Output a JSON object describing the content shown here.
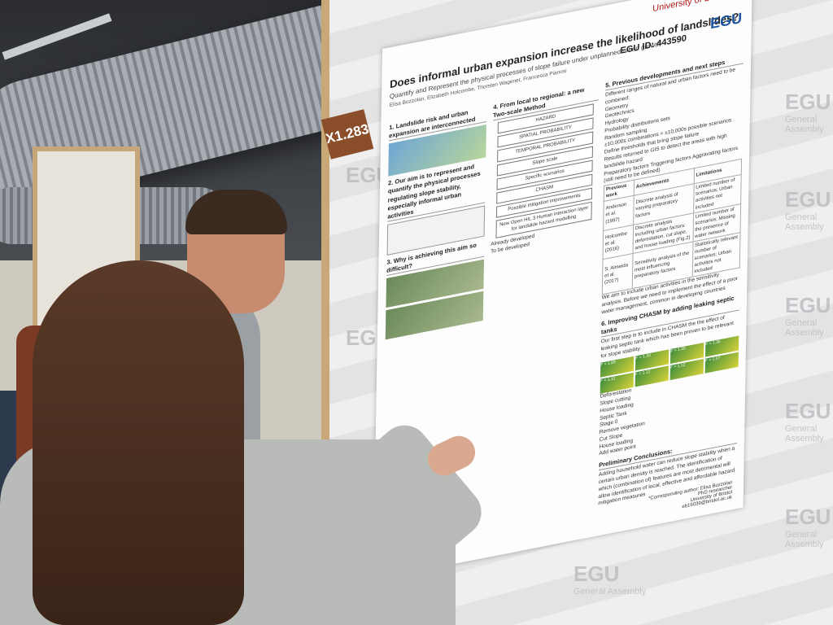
{
  "booth_number": "X1.283",
  "poster": {
    "title": "Does informal urban expansion increase the likelihood of landslides?",
    "subtitle": "Quantify and Represent the physical processes of slope failure under unplanned urban growth",
    "authors": "Elisa Bozzolan, Elizabeth Holcombe, Thorsten Wagener, Francesca Pianosi",
    "egu_id": "EGU ID: 443590",
    "logos": {
      "university": "University of BRISTOL",
      "union": "EGU"
    },
    "sections": {
      "s1": "1. Landslide risk and urban expansion are interconnected",
      "s2": "2. Our aim is to represent and quantify the physical processes regulating slope stability, especially informal urban activities",
      "s3": "3. Why is achieving this aim so difficult?",
      "s4": "4. From local to regional: a new Two-scale Method",
      "s5": "5. Previous developments and next steps",
      "s6": "6. Improving CHASM by adding leaking septic tanks"
    },
    "flow": {
      "hazard": "HAZARD",
      "spatial": "SPATIAL PROBABILITY",
      "temporal": "TEMPORAL PROBABILITY",
      "slope_scale": "Slope scale",
      "scenarios": "Specific scenarios",
      "chasm": "CHASM",
      "mitigation": "Possible mitigation improvements",
      "new_open": "New Open HIL 3 Human interaction layer for landslide hazard modelling",
      "developed": "Already developed",
      "to_develop": "To be developed"
    },
    "s5_items": {
      "intro": "Different ranges of natural and urban factors need to be combined:",
      "geometry": "Geometry",
      "geotechnics": "Geotechnics",
      "hydrology": "Hydrology",
      "prob": "Probability distributions sets",
      "random": "Random sampling",
      "combinations": "±10,000s combinations = ±10,000s possible scenarios",
      "thresholds": "Define thresholds that bring slope failure",
      "results": "Results returned to GIS to detect the areas with high landslide hazard",
      "prep": "Preparatory factors Triggering factors Aggravating factors (still need to be defined)"
    },
    "table": {
      "headers": [
        "Previous work",
        "Achievements",
        "Limitations"
      ],
      "rows": [
        [
          "Anderson et al. (1997)",
          "Discrete analysis of varying preparatory factors",
          "Limited number of scenarios; Urban activities not included"
        ],
        [
          "Holcombe et al. (2016)",
          "Discrete analysis including urban factors: deforestation, cut slope, and house loading (Fig.2)",
          "Limited number of scenarios; Missing the presence of water network"
        ],
        [
          "S. Almeida et al. (2017)",
          "Sensitivity analysis of the most influencing preparatory factors",
          "Statistically relevant number of scenarios; Urban activities not included"
        ]
      ]
    },
    "aim_text": "We aim to include urban activities in the sensitivity analysis. Before we need to implement the effect of a poor water management, common in developing countries",
    "s6_text": "Our first step is to include in CHASM the the effect of leaking septic tank which has been proven to be relevant for slope stability",
    "s6_labels": [
      "Deforestation",
      "Slope cutting",
      "House loading",
      "Septic Tank",
      "Stage 0",
      "Remove vegetation",
      "Cut Slope",
      "House loading",
      "Add water point"
    ],
    "fos": [
      "F = 1.89",
      "F = 1.33",
      "F = 1.39",
      "F = 1.35",
      "F = 1.12",
      "F = 1.12",
      "F = 1.12",
      "F = 1.07"
    ],
    "conclusion_title": "Preliminary Conclusions:",
    "conclusion": "Adding household water can reduce slope stability when a certain urban density is reached. The identification of which (combination of) features are most detrimental will allow identification of local, effective and affordable hazard mitigation measures",
    "contact": {
      "label": "*Corresponding author: Elisa Bozzolan",
      "role": "PhD researcher",
      "org": "University of Bristol",
      "email": "eb16039@bristol.ac.uk"
    }
  },
  "background": {
    "banner_word": "EGU",
    "banner_sub": "General Assembly"
  }
}
